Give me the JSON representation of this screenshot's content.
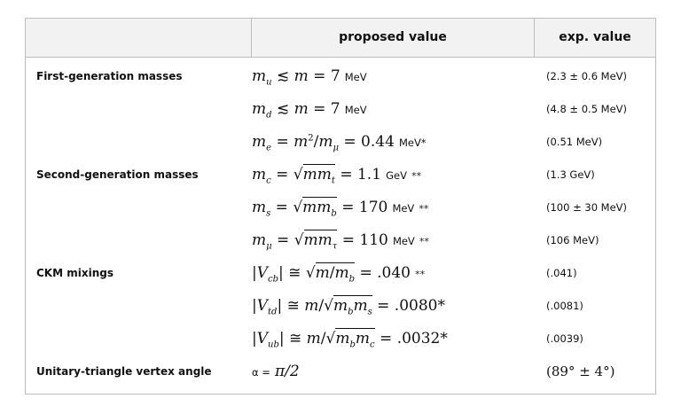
{
  "header": {
    "col1": "",
    "col2": "proposed value",
    "col3": "exp. value"
  },
  "rows": [
    {
      "label": "First-generation masses",
      "value_text": "m_u ≲ m = 7 MeV",
      "unit": "MeV",
      "exp": "(2.3 ± 0.6 MeV)"
    },
    {
      "label": "",
      "value_text": "m_d ≲ m = 7 MeV",
      "unit": "MeV",
      "exp": "(4.8 ± 0.5 MeV)"
    },
    {
      "label": "",
      "value_text": "m_e = m²/m_μ = 0.44 MeV*",
      "unit": "MeV*",
      "exp": "(0.51 MeV)"
    },
    {
      "label": "Second-generation masses",
      "value_text": "m_c = √(m m_t) = 1.1 GeV **",
      "unit": "GeV",
      "exp": "(1.3 GeV)"
    },
    {
      "label": "",
      "value_text": "m_s = √(m m_b) = 170 MeV **",
      "unit": "MeV",
      "exp": "(100 ± 30 MeV)"
    },
    {
      "label": "",
      "value_text": "m_μ = √(m m_τ) = 110 MeV **",
      "unit": "MeV",
      "exp": "(106 MeV)"
    },
    {
      "label": "CKM mixings",
      "value_text": "|V_cb| ≅ √(m/m_b) = .040 **",
      "exp": "(.041)"
    },
    {
      "label": "",
      "value_text": "|V_td| ≅ m/√(m_b m_s) = .0080*",
      "exp": "(.0081)"
    },
    {
      "label": "",
      "value_text": "|V_ub| ≅ m/√(m_b m_c) = .0032*",
      "exp": "(.0039)"
    },
    {
      "label": "Unitary-triangle vertex angle",
      "value_text": "α = π/2",
      "exp": "(89° ± 4°)"
    }
  ],
  "formula_parts": {
    "n7": "7",
    "n044": "0.44",
    "n11": "1.1",
    "n170": "170",
    "n110": "110",
    "n040": ".040",
    "n0080": ".0080",
    "n0032": ".0032",
    "mev": "MeV",
    "mevstar": "MeV*",
    "gev": "GeV",
    "dstar": "**",
    "star": "*",
    "alpha_prefix": "α =",
    "pi_half": "π/2"
  }
}
